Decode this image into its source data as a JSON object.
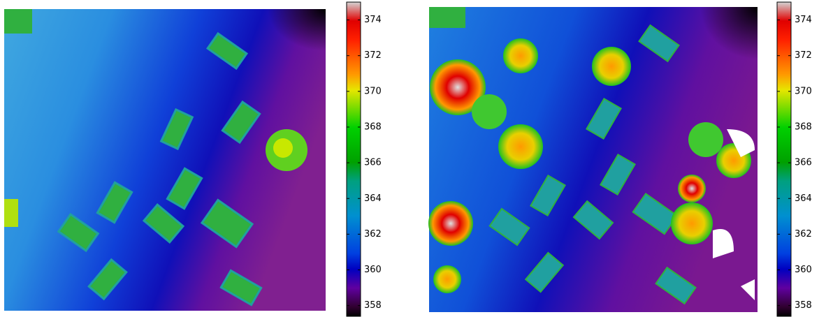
{
  "chart_data": [
    {
      "type": "heatmap",
      "colormap": "nipy_spectral",
      "clim": [
        357.4,
        375
      ],
      "cticks": [
        358,
        360,
        362,
        364,
        366,
        368,
        370,
        372,
        374
      ]
    },
    {
      "type": "heatmap",
      "colormap": "nipy_spectral",
      "clim": [
        357.4,
        375
      ],
      "cticks": [
        358,
        360,
        362,
        364,
        366,
        368,
        370,
        372,
        374
      ]
    }
  ]
}
